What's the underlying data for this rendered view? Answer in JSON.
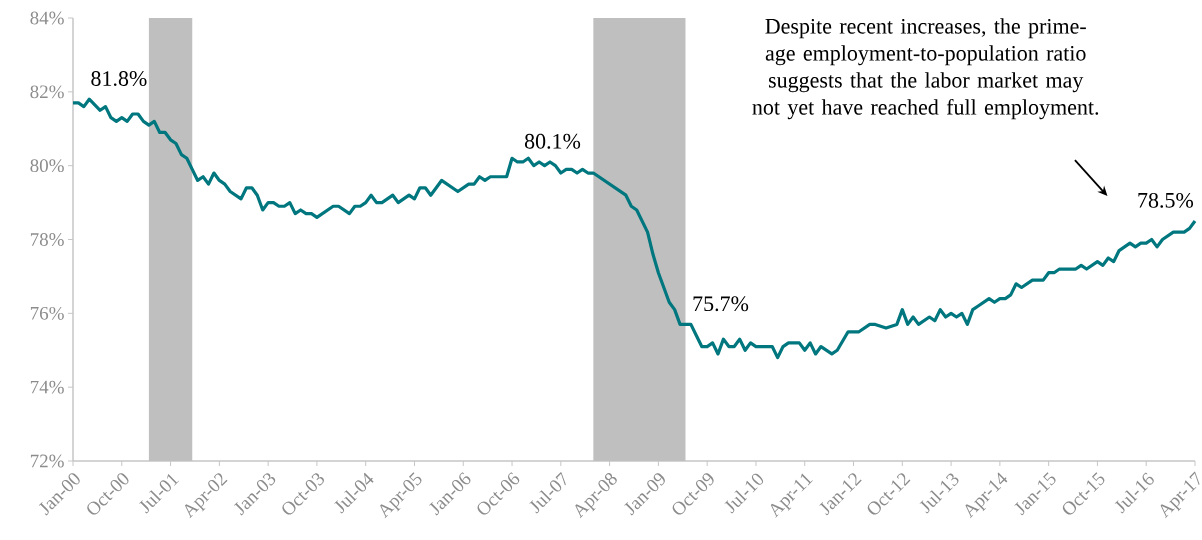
{
  "chart_data": {
    "type": "line",
    "x": [
      "2000-01",
      "2000-02",
      "2000-03",
      "2000-04",
      "2000-06",
      "2000-07",
      "2000-08",
      "2000-09",
      "2000-10",
      "2000-11",
      "2000-12",
      "2001-01",
      "2001-02",
      "2001-03",
      "2001-04",
      "2001-05",
      "2001-06",
      "2001-07",
      "2001-08",
      "2001-09",
      "2001-10",
      "2001-11",
      "2001-12",
      "2002-01",
      "2002-02",
      "2002-03",
      "2002-04",
      "2002-05",
      "2002-06",
      "2002-08",
      "2002-09",
      "2002-10",
      "2002-11",
      "2002-12",
      "2003-01",
      "2003-02",
      "2003-03",
      "2003-04",
      "2003-05",
      "2003-06",
      "2003-07",
      "2003-08",
      "2003-09",
      "2003-10",
      "2004-01",
      "2004-02",
      "2004-04",
      "2004-05",
      "2004-06",
      "2004-07",
      "2004-08",
      "2004-09",
      "2004-10",
      "2004-12",
      "2005-01",
      "2005-03",
      "2005-04",
      "2005-05",
      "2005-06",
      "2005-07",
      "2005-09",
      "2005-12",
      "2006-02",
      "2006-03",
      "2006-04",
      "2006-05",
      "2006-06",
      "2006-09",
      "2006-10",
      "2006-11",
      "2006-12",
      "2007-01",
      "2007-02",
      "2007-03",
      "2007-04",
      "2007-05",
      "2007-06",
      "2007-07",
      "2007-08",
      "2007-09",
      "2007-10",
      "2007-11",
      "2007-12",
      "2008-01",
      "2008-07",
      "2008-08",
      "2008-09",
      "2008-11",
      "2008-12",
      "2009-01",
      "2009-03",
      "2009-04",
      "2009-05",
      "2009-07",
      "2009-08",
      "2009-09",
      "2009-10",
      "2009-11",
      "2009-12",
      "2010-01",
      "2010-02",
      "2010-03",
      "2010-04",
      "2010-05",
      "2010-06",
      "2010-07",
      "2010-10",
      "2010-11",
      "2010-12",
      "2011-01",
      "2011-03",
      "2011-04",
      "2011-05",
      "2011-06",
      "2011-07",
      "2011-09",
      "2011-10",
      "2011-12",
      "2012-02",
      "2012-04",
      "2012-05",
      "2012-07",
      "2012-09",
      "2012-10",
      "2012-11",
      "2012-12",
      "2013-01",
      "2013-03",
      "2013-04",
      "2013-05",
      "2013-06",
      "2013-07",
      "2013-08",
      "2013-09",
      "2013-10",
      "2013-11",
      "2013-12",
      "2014-02",
      "2014-03",
      "2014-04",
      "2014-05",
      "2014-06",
      "2014-07",
      "2014-08",
      "2014-10",
      "2014-12",
      "2015-01",
      "2015-02",
      "2015-03",
      "2015-06",
      "2015-07",
      "2015-08",
      "2015-10",
      "2015-11",
      "2015-12",
      "2016-01",
      "2016-02",
      "2016-04",
      "2016-05",
      "2016-06",
      "2016-07",
      "2016-08",
      "2016-09",
      "2016-10",
      "2016-12",
      "2017-02",
      "2017-03",
      "2017-04"
    ],
    "series": [
      {
        "color": "#00777f",
        "values": [
          81.7,
          81.7,
          81.6,
          81.8,
          81.5,
          81.6,
          81.3,
          81.2,
          81.3,
          81.2,
          81.4,
          81.4,
          81.2,
          81.1,
          81.2,
          80.9,
          80.9,
          80.7,
          80.6,
          80.3,
          80.2,
          79.9,
          79.6,
          79.7,
          79.5,
          79.8,
          79.6,
          79.5,
          79.3,
          79.1,
          79.4,
          79.4,
          79.2,
          78.8,
          79.0,
          79.0,
          78.9,
          78.9,
          79.0,
          78.7,
          78.8,
          78.7,
          78.7,
          78.6,
          78.9,
          78.9,
          78.7,
          78.9,
          78.9,
          79.0,
          79.2,
          79.0,
          79.0,
          79.2,
          79.0,
          79.2,
          79.1,
          79.4,
          79.4,
          79.2,
          79.6,
          79.3,
          79.5,
          79.5,
          79.7,
          79.6,
          79.7,
          79.7,
          80.2,
          80.1,
          80.1,
          80.2,
          80.0,
          80.1,
          80.0,
          80.1,
          80.0,
          79.8,
          79.9,
          79.9,
          79.8,
          79.9,
          79.8,
          79.8,
          79.2,
          78.9,
          78.8,
          78.2,
          77.6,
          77.1,
          76.3,
          76.1,
          75.7,
          75.7,
          75.4,
          75.1,
          75.1,
          75.2,
          74.9,
          75.3,
          75.1,
          75.1,
          75.3,
          75.0,
          75.2,
          75.1,
          75.1,
          74.8,
          75.1,
          75.2,
          75.2,
          75.0,
          75.2,
          74.9,
          75.1,
          74.9,
          75.0,
          75.5,
          75.5,
          75.7,
          75.7,
          75.6,
          75.7,
          76.1,
          75.7,
          75.9,
          75.7,
          75.9,
          75.8,
          76.1,
          75.9,
          76.0,
          75.9,
          76.0,
          75.7,
          76.1,
          76.2,
          76.4,
          76.3,
          76.4,
          76.4,
          76.5,
          76.8,
          76.7,
          76.9,
          76.9,
          77.1,
          77.1,
          77.2,
          77.2,
          77.3,
          77.2,
          77.4,
          77.3,
          77.5,
          77.4,
          77.7,
          77.9,
          77.8,
          77.9,
          77.9,
          78.0,
          77.8,
          78.0,
          78.2,
          78.2,
          78.3,
          78.5
        ]
      }
    ],
    "xlim": [
      "2000-01",
      "2017-04"
    ],
    "xticks": [
      {
        "value": "2000-01",
        "label": "Jan-00"
      },
      {
        "value": "2000-10",
        "label": "Oct-00"
      },
      {
        "value": "2001-07",
        "label": "Jul-01"
      },
      {
        "value": "2002-04",
        "label": "Apr-02"
      },
      {
        "value": "2003-01",
        "label": "Jan-03"
      },
      {
        "value": "2003-10",
        "label": "Oct-03"
      },
      {
        "value": "2004-07",
        "label": "Jul-04"
      },
      {
        "value": "2005-04",
        "label": "Apr-05"
      },
      {
        "value": "2006-01",
        "label": "Jan-06"
      },
      {
        "value": "2006-10",
        "label": "Oct-06"
      },
      {
        "value": "2007-07",
        "label": "Jul-07"
      },
      {
        "value": "2008-04",
        "label": "Apr-08"
      },
      {
        "value": "2009-01",
        "label": "Jan-09"
      },
      {
        "value": "2009-10",
        "label": "Oct-09"
      },
      {
        "value": "2010-07",
        "label": "Jul-10"
      },
      {
        "value": "2011-04",
        "label": "Apr-11"
      },
      {
        "value": "2012-01",
        "label": "Jan-12"
      },
      {
        "value": "2012-10",
        "label": "Oct-12"
      },
      {
        "value": "2013-07",
        "label": "Jul-13"
      },
      {
        "value": "2014-04",
        "label": "Apr-14"
      },
      {
        "value": "2015-01",
        "label": "Jan-15"
      },
      {
        "value": "2015-10",
        "label": "Oct-15"
      },
      {
        "value": "2016-07",
        "label": "Jul-16"
      },
      {
        "value": "2017-04",
        "label": "Apr-17"
      }
    ],
    "ylim": [
      72,
      84
    ],
    "yticks": [
      {
        "value": 72,
        "label": "72%"
      },
      {
        "value": 74,
        "label": "74%"
      },
      {
        "value": 76,
        "label": "76%"
      },
      {
        "value": 78,
        "label": "78%"
      },
      {
        "value": 80,
        "label": "80%"
      },
      {
        "value": 82,
        "label": "82%"
      },
      {
        "value": 84,
        "label": "84%"
      }
    ],
    "bands": [
      {
        "axis": "x",
        "from": "2001-03",
        "to": "2001-11",
        "color": "#bfbfbf"
      },
      {
        "axis": "x",
        "from": "2008-01",
        "to": "2009-06",
        "color": "#bfbfbf"
      }
    ],
    "annotations": [
      {
        "text": "81.8%",
        "x": "2000-04",
        "y": 81.8
      },
      {
        "text": "80.1%",
        "x": "2006-12",
        "y": 80.1
      },
      {
        "text": "75.7%",
        "x": "2009-07",
        "y": 75.7
      },
      {
        "text": "78.5%",
        "x": "2017-04",
        "y": 78.5
      },
      "Despite recent increases, the prime-age employment-to-population ratio suggests that the labor market may not yet have reached full employment."
    ],
    "grid": false,
    "marker": "none",
    "line_style": "solid"
  }
}
